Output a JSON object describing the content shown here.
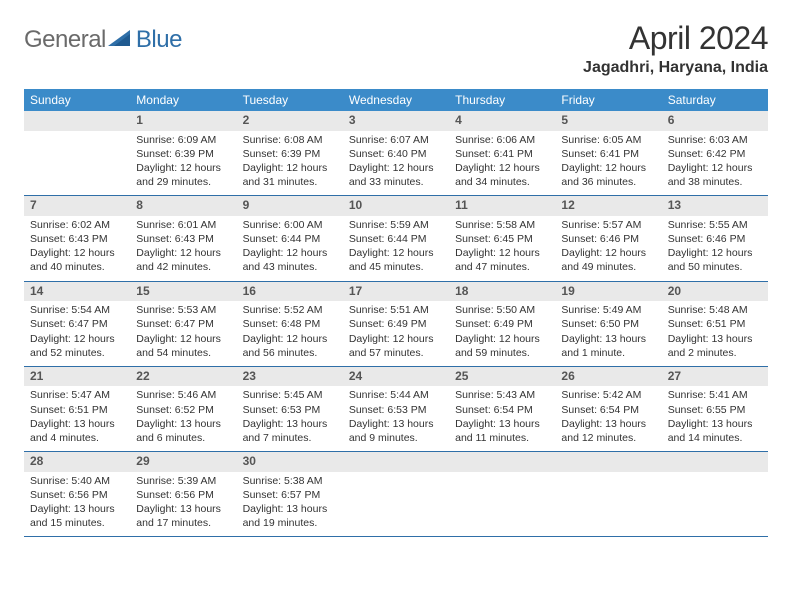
{
  "logo": {
    "general": "General",
    "blue": "Blue"
  },
  "header": {
    "title": "April 2024",
    "location": "Jagadhri, Haryana, India"
  },
  "colors": {
    "header_bg": "#3b8bc9",
    "header_fg": "#ffffff",
    "daynum_bg": "#e9e9e9",
    "row_border": "#2f6fa8",
    "logo_grey": "#6a6a6a",
    "logo_blue": "#2f6fa8"
  },
  "daynames": [
    "Sunday",
    "Monday",
    "Tuesday",
    "Wednesday",
    "Thursday",
    "Friday",
    "Saturday"
  ],
  "weeks": [
    [
      null,
      {
        "n": "1",
        "sr": "Sunrise: 6:09 AM",
        "ss": "Sunset: 6:39 PM",
        "d1": "Daylight: 12 hours",
        "d2": "and 29 minutes."
      },
      {
        "n": "2",
        "sr": "Sunrise: 6:08 AM",
        "ss": "Sunset: 6:39 PM",
        "d1": "Daylight: 12 hours",
        "d2": "and 31 minutes."
      },
      {
        "n": "3",
        "sr": "Sunrise: 6:07 AM",
        "ss": "Sunset: 6:40 PM",
        "d1": "Daylight: 12 hours",
        "d2": "and 33 minutes."
      },
      {
        "n": "4",
        "sr": "Sunrise: 6:06 AM",
        "ss": "Sunset: 6:41 PM",
        "d1": "Daylight: 12 hours",
        "d2": "and 34 minutes."
      },
      {
        "n": "5",
        "sr": "Sunrise: 6:05 AM",
        "ss": "Sunset: 6:41 PM",
        "d1": "Daylight: 12 hours",
        "d2": "and 36 minutes."
      },
      {
        "n": "6",
        "sr": "Sunrise: 6:03 AM",
        "ss": "Sunset: 6:42 PM",
        "d1": "Daylight: 12 hours",
        "d2": "and 38 minutes."
      }
    ],
    [
      {
        "n": "7",
        "sr": "Sunrise: 6:02 AM",
        "ss": "Sunset: 6:43 PM",
        "d1": "Daylight: 12 hours",
        "d2": "and 40 minutes."
      },
      {
        "n": "8",
        "sr": "Sunrise: 6:01 AM",
        "ss": "Sunset: 6:43 PM",
        "d1": "Daylight: 12 hours",
        "d2": "and 42 minutes."
      },
      {
        "n": "9",
        "sr": "Sunrise: 6:00 AM",
        "ss": "Sunset: 6:44 PM",
        "d1": "Daylight: 12 hours",
        "d2": "and 43 minutes."
      },
      {
        "n": "10",
        "sr": "Sunrise: 5:59 AM",
        "ss": "Sunset: 6:44 PM",
        "d1": "Daylight: 12 hours",
        "d2": "and 45 minutes."
      },
      {
        "n": "11",
        "sr": "Sunrise: 5:58 AM",
        "ss": "Sunset: 6:45 PM",
        "d1": "Daylight: 12 hours",
        "d2": "and 47 minutes."
      },
      {
        "n": "12",
        "sr": "Sunrise: 5:57 AM",
        "ss": "Sunset: 6:46 PM",
        "d1": "Daylight: 12 hours",
        "d2": "and 49 minutes."
      },
      {
        "n": "13",
        "sr": "Sunrise: 5:55 AM",
        "ss": "Sunset: 6:46 PM",
        "d1": "Daylight: 12 hours",
        "d2": "and 50 minutes."
      }
    ],
    [
      {
        "n": "14",
        "sr": "Sunrise: 5:54 AM",
        "ss": "Sunset: 6:47 PM",
        "d1": "Daylight: 12 hours",
        "d2": "and 52 minutes."
      },
      {
        "n": "15",
        "sr": "Sunrise: 5:53 AM",
        "ss": "Sunset: 6:47 PM",
        "d1": "Daylight: 12 hours",
        "d2": "and 54 minutes."
      },
      {
        "n": "16",
        "sr": "Sunrise: 5:52 AM",
        "ss": "Sunset: 6:48 PM",
        "d1": "Daylight: 12 hours",
        "d2": "and 56 minutes."
      },
      {
        "n": "17",
        "sr": "Sunrise: 5:51 AM",
        "ss": "Sunset: 6:49 PM",
        "d1": "Daylight: 12 hours",
        "d2": "and 57 minutes."
      },
      {
        "n": "18",
        "sr": "Sunrise: 5:50 AM",
        "ss": "Sunset: 6:49 PM",
        "d1": "Daylight: 12 hours",
        "d2": "and 59 minutes."
      },
      {
        "n": "19",
        "sr": "Sunrise: 5:49 AM",
        "ss": "Sunset: 6:50 PM",
        "d1": "Daylight: 13 hours",
        "d2": "and 1 minute."
      },
      {
        "n": "20",
        "sr": "Sunrise: 5:48 AM",
        "ss": "Sunset: 6:51 PM",
        "d1": "Daylight: 13 hours",
        "d2": "and 2 minutes."
      }
    ],
    [
      {
        "n": "21",
        "sr": "Sunrise: 5:47 AM",
        "ss": "Sunset: 6:51 PM",
        "d1": "Daylight: 13 hours",
        "d2": "and 4 minutes."
      },
      {
        "n": "22",
        "sr": "Sunrise: 5:46 AM",
        "ss": "Sunset: 6:52 PM",
        "d1": "Daylight: 13 hours",
        "d2": "and 6 minutes."
      },
      {
        "n": "23",
        "sr": "Sunrise: 5:45 AM",
        "ss": "Sunset: 6:53 PM",
        "d1": "Daylight: 13 hours",
        "d2": "and 7 minutes."
      },
      {
        "n": "24",
        "sr": "Sunrise: 5:44 AM",
        "ss": "Sunset: 6:53 PM",
        "d1": "Daylight: 13 hours",
        "d2": "and 9 minutes."
      },
      {
        "n": "25",
        "sr": "Sunrise: 5:43 AM",
        "ss": "Sunset: 6:54 PM",
        "d1": "Daylight: 13 hours",
        "d2": "and 11 minutes."
      },
      {
        "n": "26",
        "sr": "Sunrise: 5:42 AM",
        "ss": "Sunset: 6:54 PM",
        "d1": "Daylight: 13 hours",
        "d2": "and 12 minutes."
      },
      {
        "n": "27",
        "sr": "Sunrise: 5:41 AM",
        "ss": "Sunset: 6:55 PM",
        "d1": "Daylight: 13 hours",
        "d2": "and 14 minutes."
      }
    ],
    [
      {
        "n": "28",
        "sr": "Sunrise: 5:40 AM",
        "ss": "Sunset: 6:56 PM",
        "d1": "Daylight: 13 hours",
        "d2": "and 15 minutes."
      },
      {
        "n": "29",
        "sr": "Sunrise: 5:39 AM",
        "ss": "Sunset: 6:56 PM",
        "d1": "Daylight: 13 hours",
        "d2": "and 17 minutes."
      },
      {
        "n": "30",
        "sr": "Sunrise: 5:38 AM",
        "ss": "Sunset: 6:57 PM",
        "d1": "Daylight: 13 hours",
        "d2": "and 19 minutes."
      },
      null,
      null,
      null,
      null
    ]
  ]
}
